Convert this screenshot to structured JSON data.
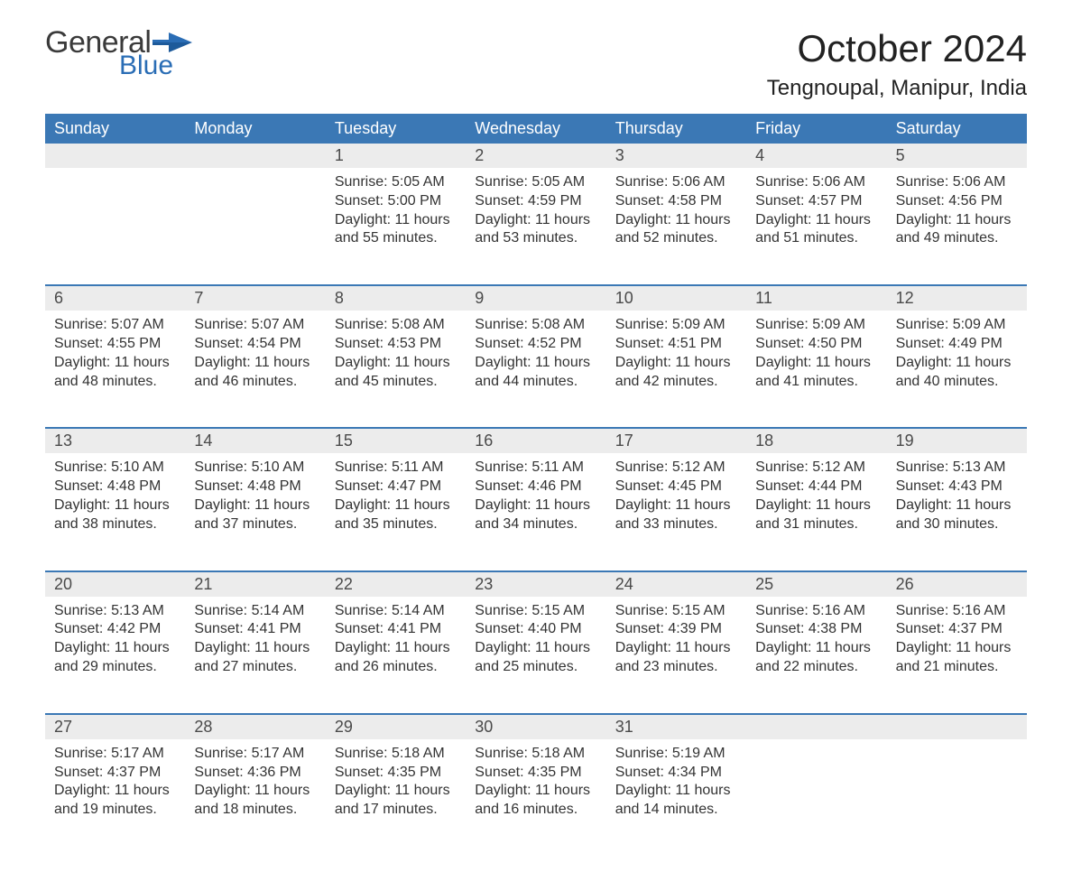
{
  "logo": {
    "line1": "General",
    "line2": "Blue",
    "flag_color": "#2a6db5"
  },
  "title": "October 2024",
  "location": "Tengnoupal, Manipur, India",
  "colors": {
    "header_bg": "#3b78b5",
    "header_text": "#ffffff",
    "daynum_bg": "#ececec",
    "daynum_text": "#4a4a4a",
    "body_text": "#333333",
    "border": "#3b78b5",
    "page_bg": "#ffffff"
  },
  "typography": {
    "title_fontsize": 42,
    "location_fontsize": 24,
    "header_fontsize": 18,
    "daynum_fontsize": 18,
    "body_fontsize": 16
  },
  "day_headers": [
    "Sunday",
    "Monday",
    "Tuesday",
    "Wednesday",
    "Thursday",
    "Friday",
    "Saturday"
  ],
  "weeks": [
    {
      "nums": [
        "",
        "",
        "1",
        "2",
        "3",
        "4",
        "5"
      ],
      "cells": [
        "",
        "",
        "Sunrise: 5:05 AM\nSunset: 5:00 PM\nDaylight: 11 hours and 55 minutes.",
        "Sunrise: 5:05 AM\nSunset: 4:59 PM\nDaylight: 11 hours and 53 minutes.",
        "Sunrise: 5:06 AM\nSunset: 4:58 PM\nDaylight: 11 hours and 52 minutes.",
        "Sunrise: 5:06 AM\nSunset: 4:57 PM\nDaylight: 11 hours and 51 minutes.",
        "Sunrise: 5:06 AM\nSunset: 4:56 PM\nDaylight: 11 hours and 49 minutes."
      ]
    },
    {
      "nums": [
        "6",
        "7",
        "8",
        "9",
        "10",
        "11",
        "12"
      ],
      "cells": [
        "Sunrise: 5:07 AM\nSunset: 4:55 PM\nDaylight: 11 hours and 48 minutes.",
        "Sunrise: 5:07 AM\nSunset: 4:54 PM\nDaylight: 11 hours and 46 minutes.",
        "Sunrise: 5:08 AM\nSunset: 4:53 PM\nDaylight: 11 hours and 45 minutes.",
        "Sunrise: 5:08 AM\nSunset: 4:52 PM\nDaylight: 11 hours and 44 minutes.",
        "Sunrise: 5:09 AM\nSunset: 4:51 PM\nDaylight: 11 hours and 42 minutes.",
        "Sunrise: 5:09 AM\nSunset: 4:50 PM\nDaylight: 11 hours and 41 minutes.",
        "Sunrise: 5:09 AM\nSunset: 4:49 PM\nDaylight: 11 hours and 40 minutes."
      ]
    },
    {
      "nums": [
        "13",
        "14",
        "15",
        "16",
        "17",
        "18",
        "19"
      ],
      "cells": [
        "Sunrise: 5:10 AM\nSunset: 4:48 PM\nDaylight: 11 hours and 38 minutes.",
        "Sunrise: 5:10 AM\nSunset: 4:48 PM\nDaylight: 11 hours and 37 minutes.",
        "Sunrise: 5:11 AM\nSunset: 4:47 PM\nDaylight: 11 hours and 35 minutes.",
        "Sunrise: 5:11 AM\nSunset: 4:46 PM\nDaylight: 11 hours and 34 minutes.",
        "Sunrise: 5:12 AM\nSunset: 4:45 PM\nDaylight: 11 hours and 33 minutes.",
        "Sunrise: 5:12 AM\nSunset: 4:44 PM\nDaylight: 11 hours and 31 minutes.",
        "Sunrise: 5:13 AM\nSunset: 4:43 PM\nDaylight: 11 hours and 30 minutes."
      ]
    },
    {
      "nums": [
        "20",
        "21",
        "22",
        "23",
        "24",
        "25",
        "26"
      ],
      "cells": [
        "Sunrise: 5:13 AM\nSunset: 4:42 PM\nDaylight: 11 hours and 29 minutes.",
        "Sunrise: 5:14 AM\nSunset: 4:41 PM\nDaylight: 11 hours and 27 minutes.",
        "Sunrise: 5:14 AM\nSunset: 4:41 PM\nDaylight: 11 hours and 26 minutes.",
        "Sunrise: 5:15 AM\nSunset: 4:40 PM\nDaylight: 11 hours and 25 minutes.",
        "Sunrise: 5:15 AM\nSunset: 4:39 PM\nDaylight: 11 hours and 23 minutes.",
        "Sunrise: 5:16 AM\nSunset: 4:38 PM\nDaylight: 11 hours and 22 minutes.",
        "Sunrise: 5:16 AM\nSunset: 4:37 PM\nDaylight: 11 hours and 21 minutes."
      ]
    },
    {
      "nums": [
        "27",
        "28",
        "29",
        "30",
        "31",
        "",
        ""
      ],
      "cells": [
        "Sunrise: 5:17 AM\nSunset: 4:37 PM\nDaylight: 11 hours and 19 minutes.",
        "Sunrise: 5:17 AM\nSunset: 4:36 PM\nDaylight: 11 hours and 18 minutes.",
        "Sunrise: 5:18 AM\nSunset: 4:35 PM\nDaylight: 11 hours and 17 minutes.",
        "Sunrise: 5:18 AM\nSunset: 4:35 PM\nDaylight: 11 hours and 16 minutes.",
        "Sunrise: 5:19 AM\nSunset: 4:34 PM\nDaylight: 11 hours and 14 minutes.",
        "",
        ""
      ]
    }
  ]
}
